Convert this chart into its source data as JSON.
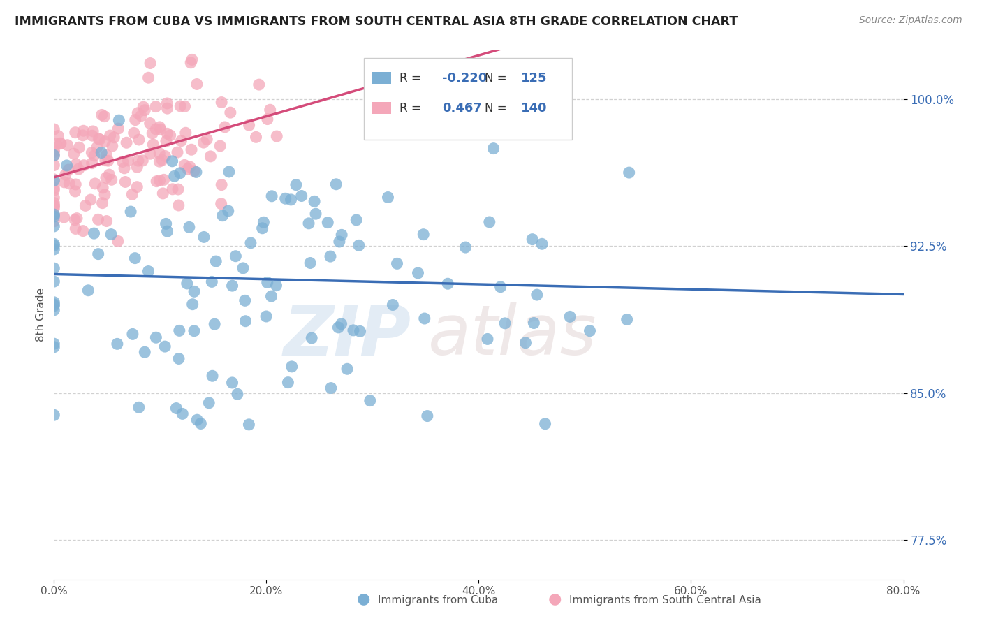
{
  "title": "IMMIGRANTS FROM CUBA VS IMMIGRANTS FROM SOUTH CENTRAL ASIA 8TH GRADE CORRELATION CHART",
  "source": "Source: ZipAtlas.com",
  "ylabel": "8th Grade",
  "y_tick_labels": [
    "77.5%",
    "85.0%",
    "92.5%",
    "100.0%"
  ],
  "y_tick_values": [
    0.775,
    0.85,
    0.925,
    1.0
  ],
  "xlim": [
    0.0,
    0.8
  ],
  "ylim": [
    0.755,
    1.025
  ],
  "x_tick_values": [
    0.0,
    0.2,
    0.4,
    0.6,
    0.8
  ],
  "x_tick_labels": [
    "0.0%",
    "20.0%",
    "40.0%",
    "60.0%",
    "80.0%"
  ],
  "legend_blue_label": "Immigrants from Cuba",
  "legend_pink_label": "Immigrants from South Central Asia",
  "R_blue": -0.22,
  "N_blue": 125,
  "R_pink": 0.467,
  "N_pink": 140,
  "blue_color": "#7bafd4",
  "pink_color": "#f4a7b9",
  "blue_line_color": "#3a6db5",
  "pink_line_color": "#d44b7a",
  "watermark_zip": "ZIP",
  "watermark_atlas": "atlas",
  "background_color": "#ffffff"
}
